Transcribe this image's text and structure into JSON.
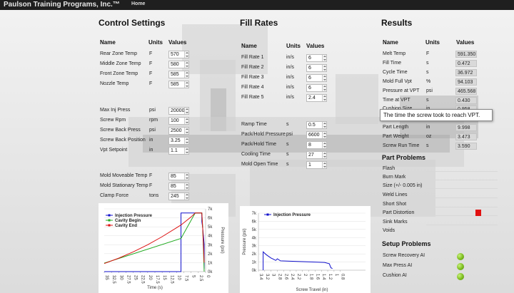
{
  "navbar": {
    "brand": "Paulson Training Programs, Inc.™",
    "home": "Home"
  },
  "control": {
    "title": "Control Settings",
    "headers": {
      "name": "Name",
      "units": "Units",
      "values": "Values"
    },
    "group1": [
      {
        "name": "Rear Zone Temp",
        "unit": "F",
        "value": "570"
      },
      {
        "name": "Middle Zone Temp",
        "unit": "F",
        "value": "580"
      },
      {
        "name": "Front Zone Temp",
        "unit": "F",
        "value": "585"
      },
      {
        "name": "Nozzle Temp",
        "unit": "F",
        "value": "585"
      }
    ],
    "group2": [
      {
        "name": "Max Inj Press",
        "unit": "psi",
        "value": "20000"
      },
      {
        "name": "Screw Rpm",
        "unit": "rpm",
        "value": "100"
      },
      {
        "name": "Screw Back Press",
        "unit": "psi",
        "value": "2500"
      },
      {
        "name": "Screw Back Position",
        "unit": "in",
        "value": "3.25"
      },
      {
        "name": "Vpt Setpoint",
        "unit": "in",
        "value": "1.1"
      }
    ],
    "group3": [
      {
        "name": "Mold Moveable Temp",
        "unit": "F",
        "value": "85"
      },
      {
        "name": "Mold Stationary Temp",
        "unit": "F",
        "value": "85"
      },
      {
        "name": "Clamp Force",
        "unit": "tons",
        "value": "245"
      }
    ]
  },
  "fill": {
    "title": "Fill Rates",
    "headers": {
      "name": "Name",
      "units": "Units",
      "values": "Values"
    },
    "group1": [
      {
        "name": "Fill Rate 1",
        "unit": "in/s",
        "value": "6"
      },
      {
        "name": "Fill Rate 2",
        "unit": "in/s",
        "value": "6"
      },
      {
        "name": "Fill Rate 3",
        "unit": "in/s",
        "value": "6"
      },
      {
        "name": "Fill Rate 4",
        "unit": "in/s",
        "value": "6"
      },
      {
        "name": "Fill Rate 5",
        "unit": "in/s",
        "value": "2.4"
      }
    ],
    "group2": [
      {
        "name": "Ramp Time",
        "unit": "s",
        "value": "0.5"
      },
      {
        "name": "Pack/Hold Pressure",
        "unit": "psi",
        "value": "6600"
      },
      {
        "name": "Pack/Hold Time",
        "unit": "s",
        "value": "8"
      },
      {
        "name": "Cooling Time",
        "unit": "s",
        "value": "27"
      },
      {
        "name": "Mold Open Time",
        "unit": "s",
        "value": "1"
      }
    ]
  },
  "results": {
    "title": "Results",
    "headers": {
      "name": "Name",
      "units": "Units",
      "values": "Values"
    },
    "rows": [
      {
        "name": "Melt Temp",
        "unit": "F",
        "value": "591.350"
      },
      {
        "name": "Fill Time",
        "unit": "s",
        "value": "0.472"
      },
      {
        "name": "Cycle Time",
        "unit": "s",
        "value": "36.972"
      },
      {
        "name": "Mold Full Vpt",
        "unit": "%",
        "value": "94.103"
      },
      {
        "name": "Pressure at VPT",
        "unit": "psi",
        "value": "465.568"
      },
      {
        "name": "Time at VPT",
        "unit": "s",
        "value": "0.430"
      },
      {
        "name": "Cushion Size",
        "unit": "in",
        "value": "0.958"
      }
    ],
    "rows2": [
      {
        "name": "Part Length",
        "unit": "in",
        "value": "9.998"
      },
      {
        "name": "Part Weight",
        "unit": "oz",
        "value": "3.473"
      },
      {
        "name": "Screw Run Time",
        "unit": "s",
        "value": "3.590"
      }
    ],
    "tooltip": "The time the screw took to reach VPT."
  },
  "part_problems": {
    "title": "Part Problems",
    "items": [
      "Flash",
      "Burn Mark",
      "Size (+/- 0.005 in)",
      "Weld Lines",
      "Short Shot",
      "Part Distortion",
      "Sink Marks",
      "Voids"
    ],
    "active_index": 5,
    "active_color": "#e11111"
  },
  "setup_problems": {
    "title": "Setup Problems",
    "items": [
      "Screw Recovery AI",
      "Max Press AI",
      "Cushion AI"
    ],
    "status_color": "#7cbc1e"
  },
  "chart_data": [
    {
      "type": "line",
      "legend": [
        "Injection Pressure",
        "Cavity Begin",
        "Cavity End"
      ],
      "colors": [
        "#1111cc",
        "#22aa22",
        "#dd1111"
      ],
      "xlabel": "Time (s)",
      "ylabel": "Pressure (psi)",
      "xlim": [
        35,
        0
      ],
      "ylim": [
        0,
        7000
      ],
      "x_ticks": [
        "35",
        "32.5",
        "30",
        "27.5",
        "25",
        "22.5",
        "20",
        "17.5",
        "15",
        "12.5",
        "10",
        "7.5",
        "5",
        "2.5",
        "0"
      ],
      "y_ticks": [
        "0k",
        "1k",
        "2k",
        "3k",
        "4k",
        "5k",
        "6k",
        "7k"
      ],
      "series": [
        {
          "name": "Injection Pressure",
          "x": [
            35,
            8.5,
            8.5,
            3.6,
            1.3,
            1.3,
            1.0,
            0.5,
            0.5
          ],
          "y": [
            0,
            0,
            6550,
            6550,
            6550,
            5600,
            4900,
            3100,
            300
          ]
        },
        {
          "name": "Cavity Begin",
          "x": [
            35,
            8.5,
            3.6,
            1.3,
            1.0,
            0.5
          ],
          "y": [
            950,
            3700,
            6550,
            6550,
            5000,
            0
          ]
        },
        {
          "name": "Cavity End",
          "x": [
            35,
            30,
            25,
            20,
            15,
            10,
            8.5,
            5,
            3.6,
            1.3,
            1.0,
            0.5
          ],
          "y": [
            900,
            1500,
            2200,
            3000,
            3900,
            4900,
            5200,
            6100,
            6550,
            6550,
            4900,
            1000
          ]
        }
      ]
    },
    {
      "type": "line",
      "legend": [
        "Injection Pressure"
      ],
      "colors": [
        "#1111cc"
      ],
      "xlabel": "Screw Travel (in)",
      "ylabel": "Pressure (psi)",
      "xlim": [
        3.4,
        0
      ],
      "ylim": [
        0,
        7000
      ],
      "x_ticks": [
        "3.4",
        "3.2",
        "3",
        "2.8",
        "2.6",
        "2.4",
        "2.2",
        "2",
        "1.8",
        "1.6",
        "1.4",
        "1.2",
        "1",
        "0.8"
      ],
      "y_ticks": [
        "0k",
        "1k",
        "2k",
        "3k",
        "4k",
        "5k",
        "6k",
        "7k"
      ],
      "series": [
        {
          "name": "Injection Pressure",
          "x": [
            3.25,
            3.25,
            3.15,
            3.0,
            2.85,
            2.8,
            2.7,
            2.4,
            2.0,
            1.6,
            1.3,
            1.15,
            1.1,
            1.05
          ],
          "y": [
            0,
            2250,
            1900,
            1500,
            1200,
            1400,
            1150,
            1100,
            1050,
            1000,
            950,
            800,
            300,
            200
          ]
        }
      ]
    }
  ]
}
